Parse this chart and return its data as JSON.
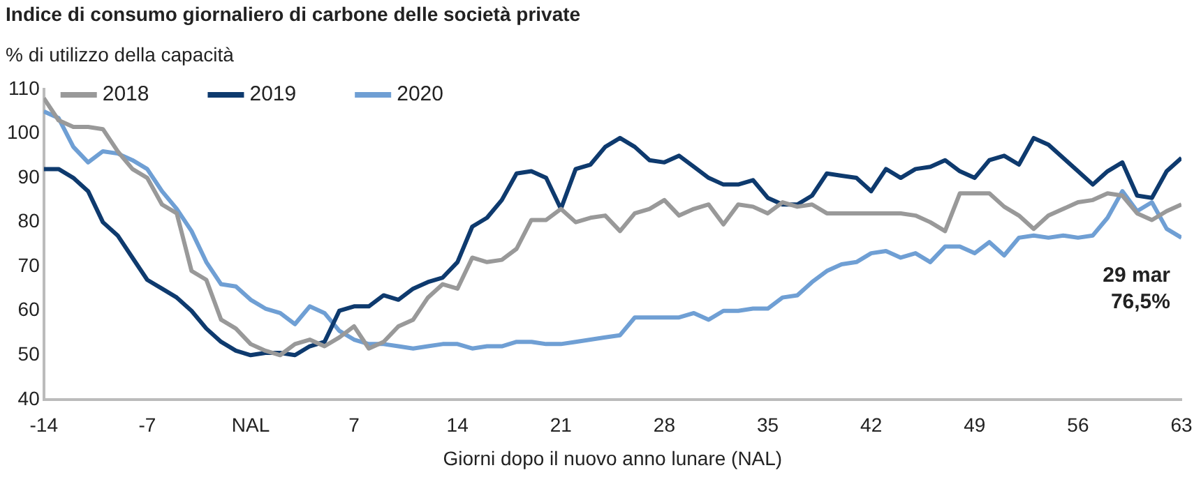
{
  "chart_data": {
    "type": "line",
    "title": "Indice di consumo giornaliero di carbone delle società private",
    "subtitle": "% di utilizzo della capacità",
    "xlabel": "Giorni dopo il nuovo anno lunare (NAL)",
    "x": [
      -14,
      -13,
      -12,
      -11,
      -10,
      -9,
      -8,
      -7,
      -6,
      -5,
      -4,
      -3,
      -2,
      -1,
      0,
      1,
      2,
      3,
      4,
      5,
      6,
      7,
      8,
      9,
      10,
      11,
      12,
      13,
      14,
      15,
      16,
      17,
      18,
      19,
      20,
      21,
      22,
      23,
      24,
      25,
      26,
      27,
      28,
      29,
      30,
      31,
      32,
      33,
      34,
      35,
      36,
      37,
      38,
      39,
      40,
      41,
      42,
      43,
      44,
      45,
      46,
      47,
      48,
      49,
      50,
      51,
      52,
      53,
      54,
      55,
      56,
      57,
      58,
      59,
      60,
      61,
      62,
      63
    ],
    "series": [
      {
        "name": "2018",
        "color": "#999999",
        "values": [
          108,
          103,
          101.5,
          101.5,
          101,
          96,
          92,
          90,
          84,
          82,
          69,
          67,
          58,
          56,
          52.5,
          51,
          50,
          52.5,
          53.5,
          52,
          54,
          56.5,
          51.5,
          53,
          56.5,
          58,
          63,
          66,
          65,
          72,
          71,
          71.5,
          74,
          80.5,
          80.5,
          83,
          80,
          81,
          81.5,
          78,
          82,
          83,
          85,
          81.5,
          83,
          84,
          79.5,
          84,
          83.5,
          82,
          84.5,
          83.5,
          84,
          82,
          82,
          82,
          82,
          82,
          82,
          81.5,
          80,
          78,
          86.5,
          86.5,
          86.5,
          83.5,
          81.5,
          78.5,
          81.5,
          83,
          84.5,
          85,
          86.5,
          86,
          82,
          80.5,
          82.5,
          84
        ]
      },
      {
        "name": "2019",
        "color": "#0e3a6e",
        "values": [
          92,
          92,
          90,
          87,
          80,
          77,
          72,
          67,
          65,
          63,
          60,
          56,
          53,
          51,
          50,
          50.5,
          50.5,
          50,
          52,
          53,
          60,
          61,
          61,
          63.5,
          62.5,
          65,
          66.5,
          67.5,
          71,
          79,
          81,
          85,
          91,
          91.5,
          90,
          83,
          92,
          93,
          97,
          99,
          97,
          94,
          93.5,
          95,
          92.5,
          90,
          88.5,
          88.5,
          89.5,
          85.5,
          84,
          84,
          86,
          91,
          90.5,
          90,
          87,
          92,
          90,
          92,
          92.5,
          94,
          91.5,
          90,
          94,
          95,
          93,
          99,
          97.5,
          94.5,
          91.5,
          88.5,
          91.5,
          93.5,
          86,
          85.5,
          91.5,
          94.5
        ]
      },
      {
        "name": "2020",
        "color": "#6f9fd4",
        "values": [
          105,
          103.5,
          97,
          93.5,
          96,
          95.5,
          94,
          92,
          87,
          83,
          78,
          71,
          66,
          65.5,
          62.5,
          60.5,
          59.5,
          57,
          61,
          59.5,
          55.5,
          53.5,
          52.5,
          52.5,
          52,
          51.5,
          52,
          52.5,
          52.5,
          51.5,
          52,
          52,
          53,
          53,
          52.5,
          52.5,
          53,
          53.5,
          54,
          54.5,
          58.5,
          58.5,
          58.5,
          58.5,
          59.5,
          58,
          60,
          60,
          60.5,
          60.5,
          63,
          63.5,
          66.5,
          69,
          70.5,
          71,
          73,
          73.5,
          72,
          73,
          71,
          74.5,
          74.5,
          73,
          75.5,
          72.5,
          76.5,
          77,
          76.5,
          77,
          76.5,
          77,
          81,
          87,
          82.5,
          84.5,
          78.5,
          76.5
        ]
      }
    ],
    "xlim": [
      -14,
      63
    ],
    "xticks": [
      -14,
      -7,
      {
        "value": 0,
        "label": "NAL"
      },
      7,
      14,
      21,
      28,
      35,
      42,
      49,
      56,
      63
    ],
    "ylim": [
      40,
      110
    ],
    "yticks": [
      40,
      50,
      60,
      70,
      80,
      90,
      100,
      110
    ],
    "annotations": [
      {
        "text": "29 mar\n76,5%",
        "x": 63,
        "y": 76.5
      }
    ],
    "legend": "top left",
    "grid": false,
    "marker": "none",
    "line_style": "solid"
  }
}
